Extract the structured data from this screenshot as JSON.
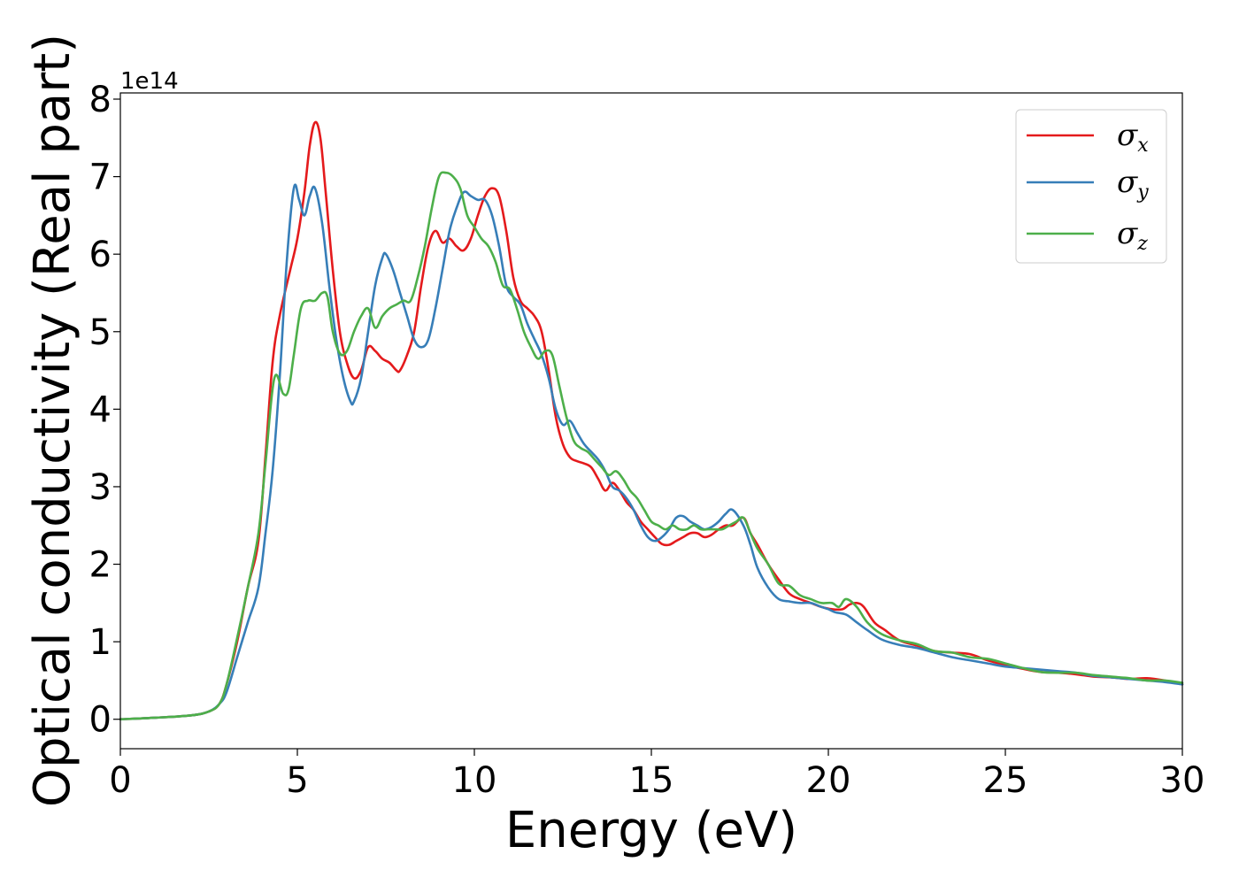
{
  "chart_data": {
    "type": "line",
    "xlabel": "Energy (eV)",
    "ylabel": "Optical conductivity (Real part)",
    "y_offset_label": "1e14",
    "xlim": [
      0,
      30
    ],
    "ylim": [
      -0.38,
      8.08
    ],
    "x_ticks": [
      0,
      5,
      10,
      15,
      20,
      25,
      30
    ],
    "y_ticks": [
      0,
      1,
      2,
      3,
      4,
      5,
      6,
      7,
      8
    ],
    "grid": false,
    "legend_position": "top-right",
    "series": [
      {
        "name": "σx",
        "symbol": "σ",
        "subscript": "x",
        "color": "#e41a1c",
        "x": [
          0,
          1,
          2,
          2.5,
          2.8,
          3.0,
          3.3,
          3.6,
          3.9,
          4.1,
          4.3,
          4.5,
          4.8,
          5.0,
          5.2,
          5.35,
          5.5,
          5.65,
          5.8,
          6.0,
          6.2,
          6.4,
          6.6,
          6.8,
          7.0,
          7.2,
          7.4,
          7.6,
          7.8,
          7.9,
          8.1,
          8.3,
          8.5,
          8.7,
          8.9,
          9.1,
          9.3,
          9.5,
          9.7,
          9.9,
          10.1,
          10.3,
          10.5,
          10.7,
          10.9,
          11.1,
          11.3,
          11.5,
          11.7,
          11.9,
          12.1,
          12.3,
          12.5,
          12.7,
          12.9,
          13.1,
          13.3,
          13.5,
          13.7,
          13.9,
          14.1,
          14.3,
          14.5,
          14.7,
          14.9,
          15.1,
          15.3,
          15.5,
          15.7,
          15.9,
          16.1,
          16.3,
          16.5,
          16.7,
          16.9,
          17.1,
          17.3,
          17.6,
          17.8,
          18.0,
          18.3,
          18.6,
          18.9,
          19.2,
          19.5,
          19.8,
          20.1,
          20.4,
          20.6,
          20.8,
          21.0,
          21.3,
          21.6,
          22.0,
          22.5,
          23.0,
          23.5,
          24.0,
          24.5,
          25.0,
          25.5,
          26.0,
          26.5,
          27.0,
          27.5,
          28.0,
          28.5,
          29.0,
          29.5,
          30
        ],
        "y": [
          0,
          0.02,
          0.05,
          0.1,
          0.2,
          0.45,
          1.0,
          1.7,
          2.3,
          3.4,
          4.6,
          5.2,
          5.8,
          6.2,
          6.8,
          7.4,
          7.7,
          7.5,
          6.8,
          5.8,
          5.0,
          4.6,
          4.4,
          4.5,
          4.8,
          4.75,
          4.65,
          4.6,
          4.5,
          4.5,
          4.7,
          5.0,
          5.6,
          6.1,
          6.3,
          6.15,
          6.2,
          6.1,
          6.05,
          6.2,
          6.5,
          6.75,
          6.85,
          6.75,
          6.3,
          5.7,
          5.4,
          5.3,
          5.2,
          5.0,
          4.5,
          3.9,
          3.55,
          3.38,
          3.33,
          3.3,
          3.25,
          3.1,
          2.95,
          3.05,
          2.95,
          2.8,
          2.7,
          2.55,
          2.45,
          2.35,
          2.26,
          2.25,
          2.3,
          2.35,
          2.4,
          2.4,
          2.35,
          2.38,
          2.45,
          2.5,
          2.5,
          2.6,
          2.4,
          2.25,
          2.0,
          1.8,
          1.62,
          1.55,
          1.5,
          1.45,
          1.42,
          1.42,
          1.48,
          1.5,
          1.45,
          1.25,
          1.15,
          1.02,
          0.95,
          0.88,
          0.86,
          0.84,
          0.76,
          0.7,
          0.65,
          0.61,
          0.6,
          0.58,
          0.55,
          0.54,
          0.52,
          0.53,
          0.5,
          0.45
        ]
      },
      {
        "name": "σy",
        "symbol": "σ",
        "subscript": "y",
        "color": "#377eb8",
        "x": [
          0,
          1,
          2,
          2.5,
          2.8,
          3.0,
          3.3,
          3.6,
          3.9,
          4.1,
          4.3,
          4.5,
          4.7,
          4.9,
          5.05,
          5.2,
          5.35,
          5.5,
          5.7,
          5.9,
          6.1,
          6.3,
          6.5,
          6.6,
          6.8,
          7.0,
          7.2,
          7.4,
          7.5,
          7.7,
          7.9,
          8.1,
          8.3,
          8.5,
          8.7,
          8.9,
          9.1,
          9.3,
          9.5,
          9.7,
          9.9,
          10.1,
          10.3,
          10.5,
          10.7,
          10.9,
          11.1,
          11.3,
          11.5,
          11.7,
          11.9,
          12.1,
          12.3,
          12.5,
          12.7,
          12.9,
          13.1,
          13.3,
          13.5,
          13.7,
          13.9,
          14.1,
          14.3,
          14.5,
          14.7,
          14.9,
          15.1,
          15.3,
          15.5,
          15.7,
          15.9,
          16.1,
          16.3,
          16.5,
          16.7,
          16.9,
          17.1,
          17.3,
          17.6,
          17.8,
          18.0,
          18.3,
          18.6,
          18.9,
          19.2,
          19.5,
          19.8,
          20.0,
          20.2,
          20.5,
          20.8,
          21.1,
          21.5,
          22.0,
          22.5,
          23.0,
          23.5,
          24.0,
          24.5,
          25.0,
          25.5,
          26.0,
          26.5,
          27.0,
          27.5,
          28.0,
          28.5,
          29.0,
          29.5,
          30
        ],
        "y": [
          0,
          0.02,
          0.05,
          0.1,
          0.2,
          0.35,
          0.8,
          1.25,
          1.7,
          2.4,
          3.2,
          4.4,
          5.9,
          6.85,
          6.7,
          6.5,
          6.75,
          6.85,
          6.4,
          5.6,
          4.9,
          4.4,
          4.1,
          4.1,
          4.4,
          5.0,
          5.6,
          5.95,
          6.0,
          5.8,
          5.5,
          5.2,
          4.9,
          4.8,
          4.9,
          5.3,
          5.8,
          6.3,
          6.6,
          6.8,
          6.75,
          6.7,
          6.7,
          6.5,
          6.1,
          5.6,
          5.45,
          5.35,
          5.1,
          4.9,
          4.7,
          4.4,
          4.0,
          3.8,
          3.85,
          3.7,
          3.55,
          3.45,
          3.35,
          3.2,
          3.0,
          2.95,
          2.85,
          2.7,
          2.5,
          2.35,
          2.3,
          2.35,
          2.45,
          2.6,
          2.62,
          2.55,
          2.5,
          2.45,
          2.48,
          2.55,
          2.65,
          2.7,
          2.5,
          2.25,
          1.95,
          1.7,
          1.55,
          1.52,
          1.5,
          1.5,
          1.45,
          1.42,
          1.38,
          1.35,
          1.25,
          1.15,
          1.03,
          0.96,
          0.92,
          0.86,
          0.8,
          0.76,
          0.72,
          0.68,
          0.66,
          0.64,
          0.62,
          0.6,
          0.56,
          0.54,
          0.52,
          0.5,
          0.48,
          0.45
        ]
      },
      {
        "name": "σz",
        "symbol": "σ",
        "subscript": "z",
        "color": "#4daf4a",
        "x": [
          0,
          1,
          2,
          2.5,
          2.8,
          3.0,
          3.3,
          3.6,
          3.9,
          4.1,
          4.35,
          4.6,
          4.75,
          4.9,
          5.1,
          5.3,
          5.5,
          5.7,
          5.85,
          6.0,
          6.2,
          6.4,
          6.6,
          6.8,
          7.0,
          7.2,
          7.4,
          7.6,
          7.8,
          8.0,
          8.2,
          8.4,
          8.6,
          8.8,
          9.0,
          9.2,
          9.4,
          9.6,
          9.8,
          10.0,
          10.2,
          10.4,
          10.6,
          10.8,
          11.0,
          11.2,
          11.4,
          11.6,
          11.8,
          12.0,
          12.2,
          12.4,
          12.6,
          12.8,
          13.0,
          13.2,
          13.4,
          13.6,
          13.8,
          14.0,
          14.2,
          14.4,
          14.6,
          14.8,
          15.0,
          15.2,
          15.4,
          15.6,
          15.8,
          16.0,
          16.2,
          16.4,
          16.6,
          16.8,
          17.0,
          17.2,
          17.4,
          17.6,
          17.8,
          18.0,
          18.3,
          18.6,
          18.9,
          19.2,
          19.5,
          19.8,
          20.1,
          20.3,
          20.5,
          20.8,
          21.1,
          21.5,
          22.0,
          22.5,
          23.0,
          23.5,
          24.0,
          24.5,
          25.0,
          25.5,
          26.0,
          26.5,
          27.0,
          27.5,
          28.0,
          28.5,
          29.0,
          29.5,
          30
        ],
        "y": [
          0,
          0.02,
          0.05,
          0.1,
          0.2,
          0.45,
          1.05,
          1.7,
          2.4,
          3.3,
          4.4,
          4.2,
          4.25,
          4.7,
          5.3,
          5.4,
          5.4,
          5.5,
          5.45,
          5.0,
          4.72,
          4.75,
          5.0,
          5.2,
          5.3,
          5.05,
          5.2,
          5.3,
          5.35,
          5.4,
          5.4,
          5.7,
          6.1,
          6.6,
          7.0,
          7.05,
          7.0,
          6.85,
          6.5,
          6.35,
          6.2,
          6.1,
          5.9,
          5.6,
          5.55,
          5.3,
          5.0,
          4.8,
          4.65,
          4.75,
          4.7,
          4.3,
          3.9,
          3.6,
          3.5,
          3.45,
          3.35,
          3.25,
          3.15,
          3.2,
          3.1,
          2.95,
          2.85,
          2.7,
          2.55,
          2.5,
          2.45,
          2.5,
          2.45,
          2.45,
          2.5,
          2.45,
          2.45,
          2.45,
          2.45,
          2.5,
          2.55,
          2.6,
          2.4,
          2.2,
          2.0,
          1.75,
          1.72,
          1.6,
          1.55,
          1.5,
          1.5,
          1.45,
          1.55,
          1.45,
          1.25,
          1.1,
          1.02,
          0.97,
          0.88,
          0.86,
          0.8,
          0.78,
          0.72,
          0.66,
          0.61,
          0.6,
          0.6,
          0.57,
          0.55,
          0.53,
          0.5,
          0.5,
          0.47
        ]
      }
    ]
  }
}
